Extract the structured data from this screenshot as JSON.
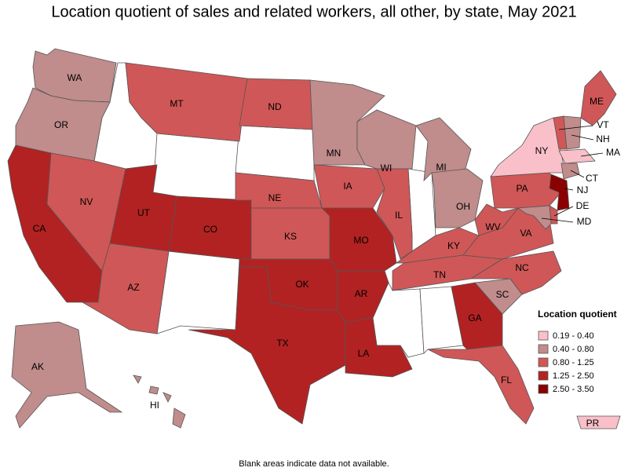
{
  "title": "Location quotient of sales and related workers, all other, by state, May 2021",
  "legend": {
    "title": "Location quotient",
    "items": [
      {
        "label": "0.19 - 0.40",
        "color": "#f9c0c9"
      },
      {
        "label": "0.40 - 0.80",
        "color": "#c08c8c"
      },
      {
        "label": "0.80 - 1.25",
        "color": "#d05757"
      },
      {
        "label": "1.25 - 2.50",
        "color": "#b22222"
      },
      {
        "label": "2.50 - 3.50",
        "color": "#8b0000"
      }
    ]
  },
  "states": [
    {
      "label": "WA",
      "color": "#c08c8c"
    },
    {
      "label": "OR",
      "color": "#c08c8c"
    },
    {
      "label": "CA",
      "color": "#b22222"
    },
    {
      "label": "NV",
      "color": "#d05757"
    },
    {
      "label": "MT",
      "color": "#d05757"
    },
    {
      "label": "UT",
      "color": "#b22222"
    },
    {
      "label": "AZ",
      "color": "#d05757"
    },
    {
      "label": "CO",
      "color": "#b22222"
    },
    {
      "label": "ND",
      "color": "#d05757"
    },
    {
      "label": "NE",
      "color": "#d05757"
    },
    {
      "label": "KS",
      "color": "#d05757"
    },
    {
      "label": "OK",
      "color": "#b22222"
    },
    {
      "label": "TX",
      "color": "#b22222"
    },
    {
      "label": "MN",
      "color": "#c08c8c"
    },
    {
      "label": "IA",
      "color": "#d05757"
    },
    {
      "label": "MO",
      "color": "#b22222"
    },
    {
      "label": "AR",
      "color": "#b22222"
    },
    {
      "label": "LA",
      "color": "#b22222"
    },
    {
      "label": "WI",
      "color": "#c08c8c"
    },
    {
      "label": "IL",
      "color": "#d05757"
    },
    {
      "label": "MI",
      "color": "#c08c8c"
    },
    {
      "label": "OH",
      "color": "#c08c8c"
    },
    {
      "label": "KY",
      "color": "#d05757"
    },
    {
      "label": "TN",
      "color": "#d05757"
    },
    {
      "label": "GA",
      "color": "#b22222"
    },
    {
      "label": "FL",
      "color": "#d05757"
    },
    {
      "label": "SC",
      "color": "#c08c8c"
    },
    {
      "label": "NC",
      "color": "#d05757"
    },
    {
      "label": "VA",
      "color": "#d05757"
    },
    {
      "label": "WV",
      "color": "#d05757"
    },
    {
      "label": "PA",
      "color": "#d05757"
    },
    {
      "label": "NY",
      "color": "#f9c0c9"
    },
    {
      "label": "ME",
      "color": "#d05757"
    },
    {
      "label": "VT",
      "color": "#d05757"
    },
    {
      "label": "NH",
      "color": "#c08c8c"
    },
    {
      "label": "MA",
      "color": "#f9c0c9"
    },
    {
      "label": "CT",
      "color": "#c08c8c"
    },
    {
      "label": "NJ",
      "color": "#8b0000"
    },
    {
      "label": "DE",
      "color": "#d05757"
    },
    {
      "label": "MD",
      "color": "#c08c8c"
    },
    {
      "label": "AK",
      "color": "#c08c8c"
    },
    {
      "label": "HI",
      "color": "#c08c8c"
    },
    {
      "label": "PR",
      "color": "#f9c0c9"
    }
  ],
  "note": "Blank areas indicate data not available."
}
